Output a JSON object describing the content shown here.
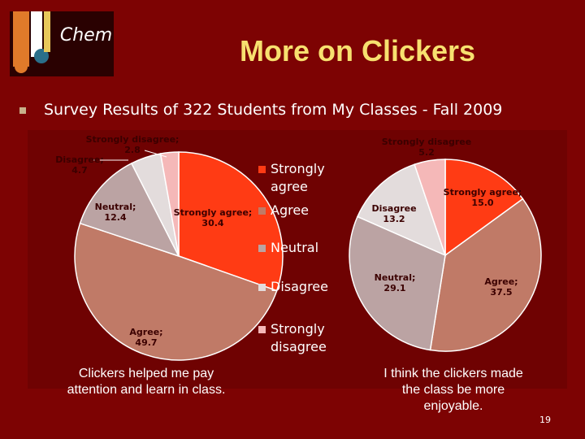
{
  "logo": {
    "text": "Chem"
  },
  "title": "More on Clickers",
  "bullet": "Survey Results of 322 Students from My Classes - Fall 2009",
  "chart_data": [
    {
      "type": "pie",
      "slices": [
        {
          "category": "Strongly agree",
          "value": 30.4,
          "label": "Strongly agree; 30.4",
          "color": "#ff3b14"
        },
        {
          "category": "Agree",
          "value": 49.7,
          "label": "Agree; 49.7",
          "color": "#c07a67"
        },
        {
          "category": "Neutral",
          "value": 12.4,
          "label": "Neutral; 12.4",
          "color": "#bba3a3"
        },
        {
          "category": "Disagree",
          "value": 4.7,
          "label": "Disagree; 4.7",
          "color": "#e3dcdc"
        },
        {
          "category": "Strongly disagree",
          "value": 2.8,
          "label": "Strongly disagree; 2.8",
          "color": "#f5b8b8"
        }
      ],
      "legend": [
        "Strongly agree",
        "Agree",
        "Neutral",
        "Disagree",
        "Strongly disagree"
      ],
      "legend_position": "right",
      "caption": "Clickers helped me pay attention and learn in class."
    },
    {
      "type": "pie",
      "slices": [
        {
          "category": "Strongly agree",
          "value": 15.0,
          "label": "Strongly agree; 15.0",
          "color": "#ff3b14"
        },
        {
          "category": "Agree",
          "value": 37.5,
          "label": "Agree; 37.5",
          "color": "#c07a67"
        },
        {
          "category": "Neutral",
          "value": 29.1,
          "label": "Neutral; 29.1",
          "color": "#bba3a3"
        },
        {
          "category": "Disagree",
          "value": 13.2,
          "label": "Disagree 13.2",
          "color": "#e3dcdc"
        },
        {
          "category": "Strongly disagree",
          "value": 5.2,
          "label": "Strongly disagree 5.2",
          "color": "#f5b8b8"
        }
      ],
      "caption": "I think the clickers made the class be more enjoyable."
    }
  ],
  "page_number": "19"
}
